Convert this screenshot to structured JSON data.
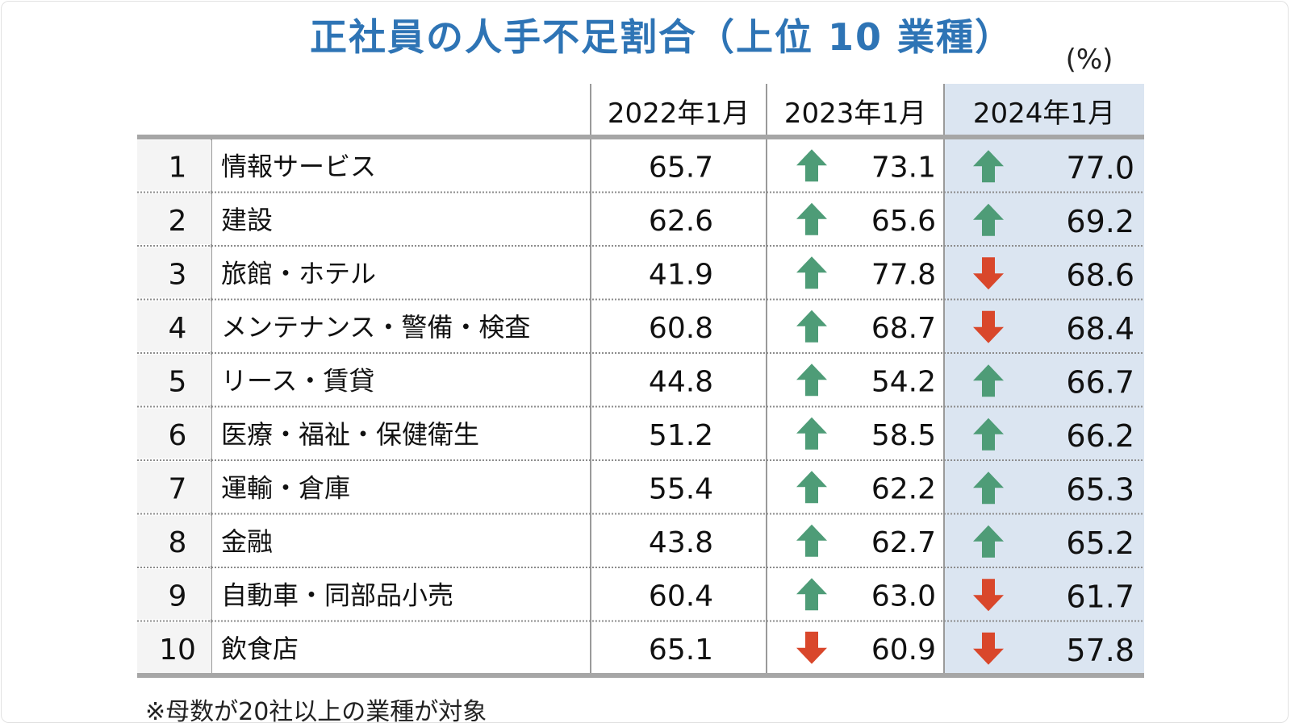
{
  "title": "正社員の人手不足割合（上位 10 業種）",
  "unit_label": "(%)",
  "footnote": "※母数が20社以上の業種が対象",
  "colors": {
    "title": "#2e74b5",
    "up_arrow": "#4e9c77",
    "down_arrow": "#d9472b",
    "highlight_column": "#dbe5f1"
  },
  "chart_data": {
    "type": "table",
    "title": "正社員の人手不足割合（上位 10 業種）",
    "unit": "(%)",
    "columns": [
      "2022年1月",
      "2023年1月",
      "2024年1月"
    ],
    "highlight_column": "2024年1月",
    "rows": [
      {
        "rank": "1",
        "industry": "情報サービス",
        "values": [
          "65.7",
          "73.1",
          "77.0"
        ],
        "trend_2023": "up",
        "trend_2024": "up"
      },
      {
        "rank": "2",
        "industry": "建設",
        "values": [
          "62.6",
          "65.6",
          "69.2"
        ],
        "trend_2023": "up",
        "trend_2024": "up"
      },
      {
        "rank": "3",
        "industry": "旅館・ホテル",
        "values": [
          "41.9",
          "77.8",
          "68.6"
        ],
        "trend_2023": "up",
        "trend_2024": "down"
      },
      {
        "rank": "4",
        "industry": "メンテナンス・警備・検査",
        "values": [
          "60.8",
          "68.7",
          "68.4"
        ],
        "trend_2023": "up",
        "trend_2024": "down"
      },
      {
        "rank": "5",
        "industry": "リース・賃貸",
        "values": [
          "44.8",
          "54.2",
          "66.7"
        ],
        "trend_2023": "up",
        "trend_2024": "up"
      },
      {
        "rank": "6",
        "industry": "医療・福祉・保健衛生",
        "values": [
          "51.2",
          "58.5",
          "66.2"
        ],
        "trend_2023": "up",
        "trend_2024": "up"
      },
      {
        "rank": "7",
        "industry": "運輸・倉庫",
        "values": [
          "55.4",
          "62.2",
          "65.3"
        ],
        "trend_2023": "up",
        "trend_2024": "up"
      },
      {
        "rank": "8",
        "industry": "金融",
        "values": [
          "43.8",
          "62.7",
          "65.2"
        ],
        "trend_2023": "up",
        "trend_2024": "up"
      },
      {
        "rank": "9",
        "industry": "自動車・同部品小売",
        "values": [
          "60.4",
          "63.0",
          "61.7"
        ],
        "trend_2023": "up",
        "trend_2024": "down"
      },
      {
        "rank": "10",
        "industry": "飲食店",
        "values": [
          "65.1",
          "60.9",
          "57.8"
        ],
        "trend_2023": "down",
        "trend_2024": "down"
      }
    ]
  }
}
